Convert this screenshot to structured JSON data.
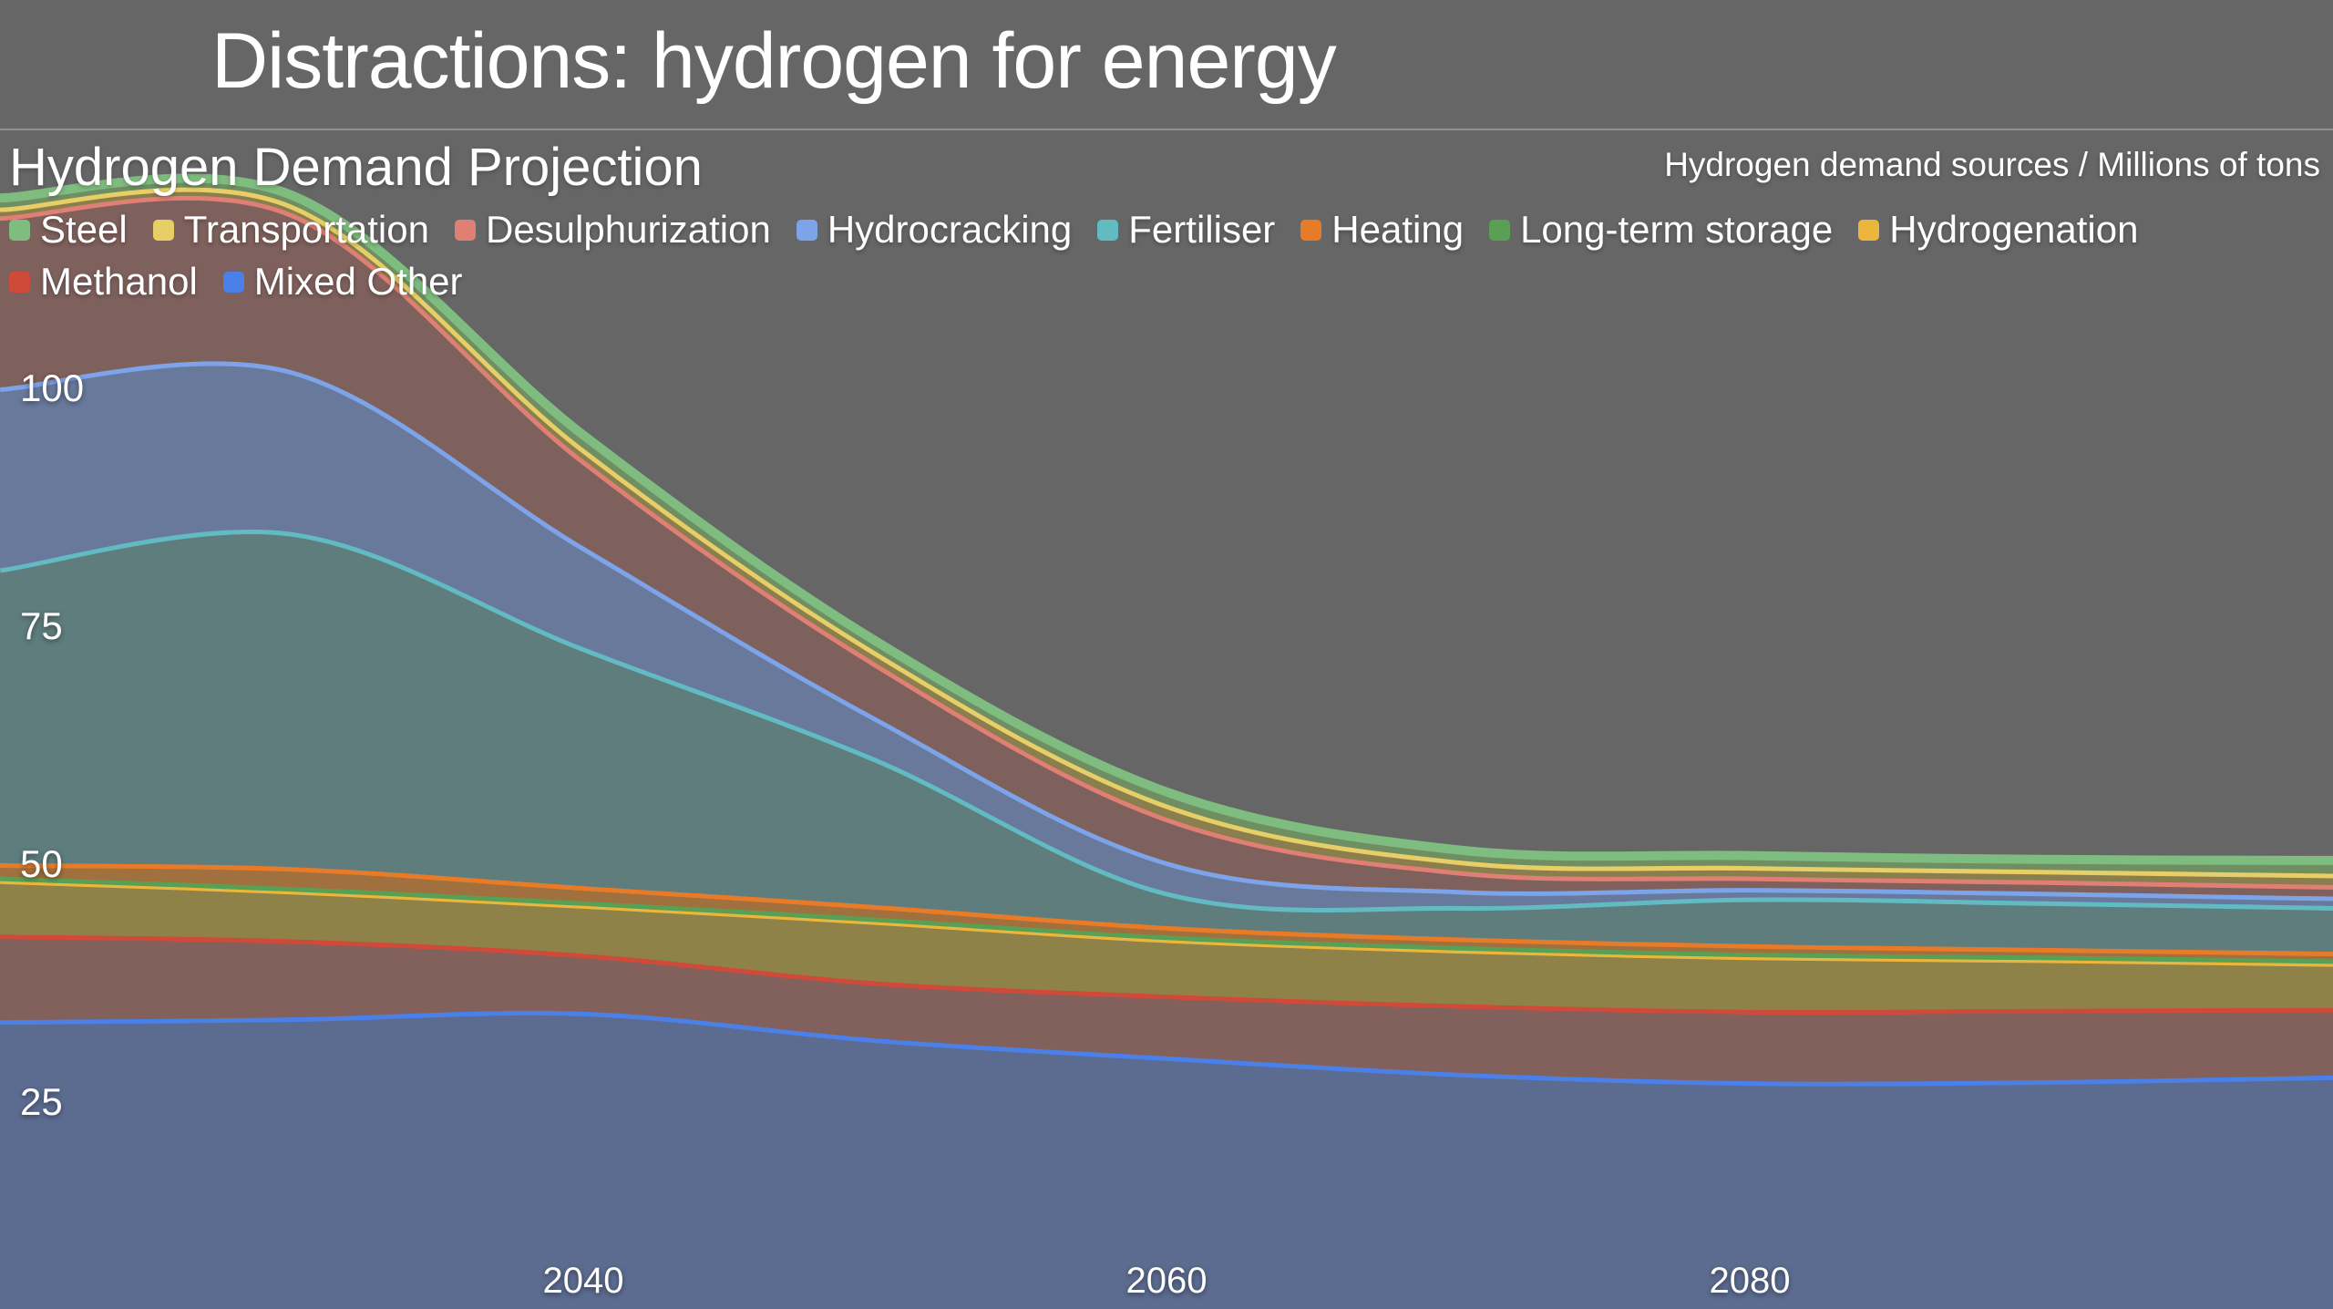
{
  "page": {
    "title": "Distractions: hydrogen for energy"
  },
  "chart_data": {
    "type": "area",
    "stacked": true,
    "title": "Hydrogen Demand Projection",
    "note": "Hydrogen demand sources / Millions of tons",
    "background_color": "#666666",
    "x": [
      2020,
      2030,
      2040,
      2050,
      2060,
      2070,
      2080,
      2090,
      2100
    ],
    "xlim": [
      2020,
      2100
    ],
    "xticks": [
      "2040",
      "2060",
      "2080"
    ],
    "xtick_values": [
      2040,
      2060,
      2080
    ],
    "yticks": [
      "25",
      "50",
      "75",
      "100"
    ],
    "ytick_values": [
      25,
      50,
      75,
      100
    ],
    "grid": false,
    "legend_position": "top-left",
    "legend_rows": [
      [
        "Steel",
        "Transportation",
        "Desulphurization",
        "Hydrocracking",
        "Fertiliser",
        "Heating",
        "Long-term storage",
        "Hydrogenation"
      ],
      [
        "Methanol",
        "Mixed Other"
      ]
    ],
    "series": [
      {
        "name": "Mixed Other",
        "color": "#4b80e8",
        "fill": "#5c6c90",
        "values": [
          33.5,
          33.8,
          34.4,
          31.6,
          29.7,
          28.0,
          27.1,
          27.2,
          27.7
        ]
      },
      {
        "name": "Methanol",
        "color": "#d04a3a",
        "fill": "#82605c",
        "values": [
          9.0,
          8.2,
          6.1,
          6.0,
          6.5,
          7.2,
          7.5,
          7.5,
          7.1
        ]
      },
      {
        "name": "Hydrogenation",
        "color": "#ecb63d",
        "fill": "#8f8248",
        "values": [
          5.8,
          5.2,
          5.2,
          6.4,
          5.9,
          5.8,
          5.7,
          5.3,
          4.8
        ]
      },
      {
        "name": "Long-term storage",
        "color": "#59a055",
        "fill": "#6f8f62",
        "values": [
          0.3,
          0.3,
          0.3,
          0.3,
          0.3,
          0.3,
          0.3,
          0.3,
          0.3
        ]
      },
      {
        "name": "Heating",
        "color": "#e87b28",
        "fill": "#a0703f",
        "values": [
          1.4,
          2.1,
          1.6,
          1.3,
          1.0,
          0.9,
          0.9,
          0.8,
          0.8
        ]
      },
      {
        "name": "Fertiliser",
        "color": "#62bbc3",
        "fill": "#5f7d7d",
        "values": [
          31.0,
          35.2,
          25.1,
          15.5,
          3.6,
          3.3,
          4.9,
          4.9,
          4.8
        ]
      },
      {
        "name": "Hydrocracking",
        "color": "#7da3e8",
        "fill": "#68799b",
        "values": [
          19.0,
          17.0,
          10.6,
          4.3,
          3.2,
          1.7,
          1.0,
          1.0,
          1.0
        ]
      },
      {
        "name": "Desulphurization",
        "color": "#e07f74",
        "fill": "#7e605c",
        "values": [
          18.0,
          16.5,
          9.1,
          5.7,
          4.6,
          2.0,
          1.2,
          1.2,
          1.2
        ]
      },
      {
        "name": "Transportation",
        "color": "#e8ce66",
        "fill": "#8a7e4e",
        "values": [
          0.9,
          0.9,
          1.2,
          1.2,
          1.4,
          1.1,
          1.1,
          1.1,
          1.2
        ]
      },
      {
        "name": "Steel",
        "color": "#7fbc7f",
        "fill": "#6f8f62",
        "values": [
          1.0,
          1.0,
          1.4,
          1.1,
          1.3,
          1.1,
          1.1,
          1.1,
          1.4
        ]
      }
    ]
  }
}
